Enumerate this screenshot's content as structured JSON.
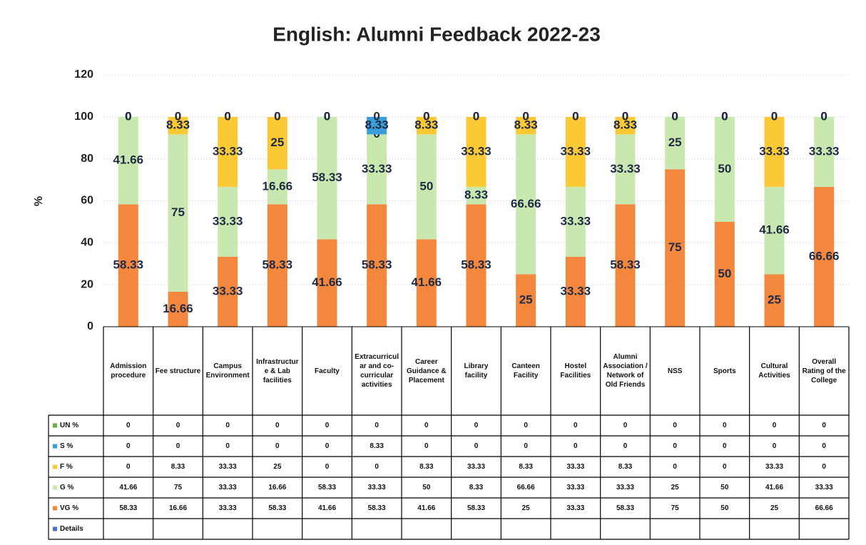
{
  "chart_data": {
    "type": "stacked_bar",
    "title": "English: Alumni Feedback 2022-23",
    "y_label": "%",
    "categories": [
      "Admission procedure",
      "Fee structure",
      "Campus Environment",
      "Infrastructure & Lab facilities",
      "Faculty",
      "Extracurricular and co-curricular activities",
      "Career Guidance & Placement",
      "Library facility",
      "Canteen Facility",
      "Hostel Facilities",
      "Alumni Association / Network of Old Friends",
      "NSS",
      "Sports",
      "Cultural Activities",
      "Overall Rating of the College"
    ],
    "series": [
      {
        "name": "UN %",
        "color": "#70ad47",
        "values": [
          0,
          0,
          0,
          0,
          0,
          0,
          0,
          0,
          0,
          0,
          0,
          0,
          0,
          0,
          0
        ]
      },
      {
        "name": "S %",
        "color": "#3b9ed8",
        "values": [
          0,
          0,
          0,
          0,
          0,
          8.33,
          0,
          0,
          0,
          0,
          0,
          0,
          0,
          0,
          0
        ]
      },
      {
        "name": "F %",
        "color": "#fcc936",
        "values": [
          0,
          8.33,
          33.33,
          25,
          0,
          0,
          8.33,
          33.33,
          8.33,
          33.33,
          8.33,
          0,
          0,
          33.33,
          0
        ]
      },
      {
        "name": "G %",
        "color": "#c9e8b0",
        "values": [
          41.66,
          75,
          33.33,
          16.66,
          58.33,
          33.33,
          50,
          8.33,
          66.66,
          33.33,
          33.33,
          25,
          50,
          41.66,
          33.33
        ]
      },
      {
        "name": "VG %",
        "color": "#f4873e",
        "values": [
          58.33,
          16.66,
          33.33,
          58.33,
          41.66,
          58.33,
          41.66,
          58.33,
          25,
          33.33,
          58.33,
          75,
          50,
          25,
          66.66
        ]
      },
      {
        "name": "Details",
        "color": "#4472c4",
        "values": [
          null,
          null,
          null,
          null,
          null,
          null,
          null,
          null,
          null,
          null,
          null,
          null,
          null,
          null,
          null
        ]
      }
    ],
    "ylim": [
      0,
      120
    ],
    "yticks": [
      0,
      20,
      40,
      60,
      80,
      100,
      120
    ],
    "grid": true
  }
}
